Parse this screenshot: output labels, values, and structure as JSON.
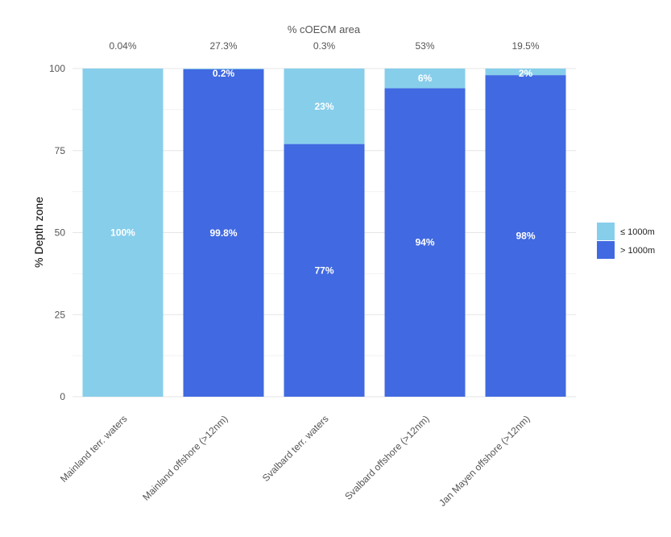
{
  "chart_data": {
    "type": "bar",
    "stacked": true,
    "top_title": "% cOECM area",
    "ylabel": "% Depth zone",
    "xlabel": "",
    "ylim": [
      0,
      100
    ],
    "yticks": [
      0,
      25,
      50,
      75,
      100
    ],
    "grid": true,
    "legend_position": "right",
    "categories": [
      "Mainland terr. waters",
      "Mainland offshore (>12nm)",
      "Svalbard terr. waters",
      "Svalbard offshore (>12nm)",
      "Jan Mayen offshore (>12nm)"
    ],
    "top_labels": [
      "0.04%",
      "27.3%",
      "0.3%",
      "53%",
      "19.5%"
    ],
    "series": [
      {
        "name": "> 1000m",
        "color": "#4169E1",
        "values": [
          0,
          99.8,
          77,
          94,
          98
        ],
        "labels": [
          "",
          "99.8%",
          "77%",
          "94%",
          "98%"
        ]
      },
      {
        "name": "≤ 1000m",
        "color": "#87CEEB",
        "values": [
          100,
          0.2,
          23,
          6,
          2
        ],
        "labels": [
          "100%",
          "0.2%",
          "23%",
          "6%",
          "2%"
        ]
      }
    ],
    "legend_order": [
      "≤ 1000m",
      "> 1000m"
    ]
  }
}
